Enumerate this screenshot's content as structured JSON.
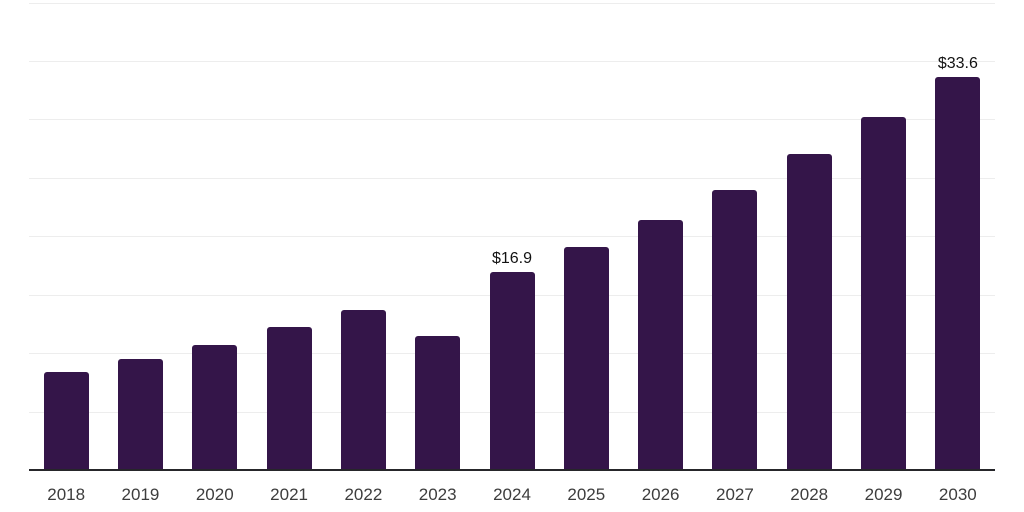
{
  "chart_data": {
    "type": "bar",
    "categories": [
      "2018",
      "2019",
      "2020",
      "2021",
      "2022",
      "2023",
      "2024",
      "2025",
      "2026",
      "2027",
      "2028",
      "2029",
      "2030"
    ],
    "values": [
      8.4,
      9.5,
      10.7,
      12.2,
      13.7,
      11.5,
      16.9,
      19.1,
      21.4,
      24.0,
      27.0,
      30.2,
      33.6
    ],
    "bar_labels": [
      "",
      "",
      "",
      "",
      "",
      "",
      "$16.9",
      "",
      "",
      "",
      "",
      "",
      "$33.6"
    ],
    "title": "",
    "xlabel": "",
    "ylabel": "",
    "ylim": [
      0,
      40
    ],
    "gridline_step": 5,
    "grid": true,
    "legend": "none",
    "y_tick_labels_shown": false,
    "colors": {
      "bar": "#341549",
      "gridline": "#ededed",
      "axis": "#26262a",
      "tick_label": "#3d3d3d",
      "value_label": "#121212",
      "background": "#ffffff"
    }
  }
}
